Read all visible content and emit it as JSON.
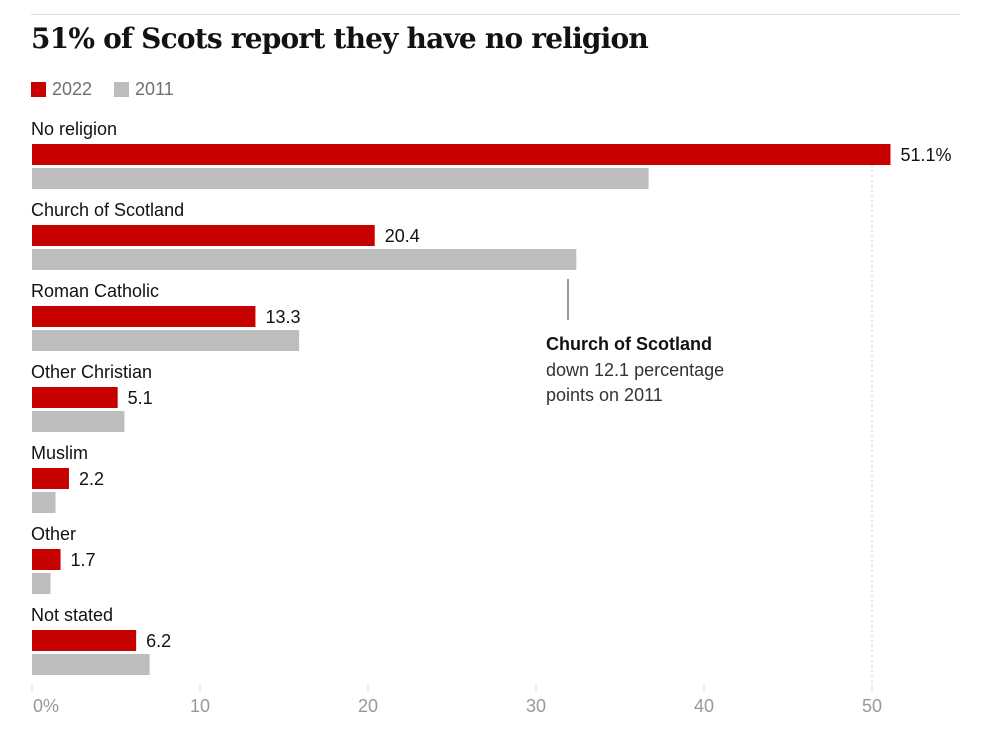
{
  "title": "51% of Scots report they have no religion",
  "colors": {
    "2022": "#c70000",
    "2011": "#bdbdbd",
    "axis_text": "#999999",
    "grid": "#dcdcdc"
  },
  "legend": [
    {
      "label": "2022",
      "color": "#c70000"
    },
    {
      "label": "2011",
      "color": "#bdbdbd"
    }
  ],
  "annotation": {
    "heading": "Church of Scotland",
    "lines": [
      "down 12.1 percentage",
      "points on 2011"
    ]
  },
  "chart_data": {
    "type": "bar",
    "orientation": "horizontal",
    "title": "51% of Scots report they have no religion",
    "categories": [
      "No religion",
      "Church of Scotland",
      "Roman Catholic",
      "Other Christian",
      "Muslim",
      "Other",
      "Not stated"
    ],
    "series": [
      {
        "name": "2022",
        "values": [
          51.1,
          20.4,
          13.3,
          5.1,
          2.2,
          1.7,
          6.2
        ],
        "labels": [
          "51.1%",
          "20.4",
          "13.3",
          "5.1",
          "2.2",
          "1.7",
          "6.2"
        ]
      },
      {
        "name": "2011",
        "values": [
          36.7,
          32.4,
          15.9,
          5.5,
          1.4,
          1.1,
          7.0
        ]
      }
    ],
    "xlim": [
      0,
      55
    ],
    "xticks": [
      0,
      10,
      20,
      30,
      40,
      50
    ],
    "xtick_labels": [
      "0%",
      "10",
      "20",
      "30",
      "40",
      "50"
    ],
    "reference_line": 50,
    "legend_position": "top-left"
  }
}
